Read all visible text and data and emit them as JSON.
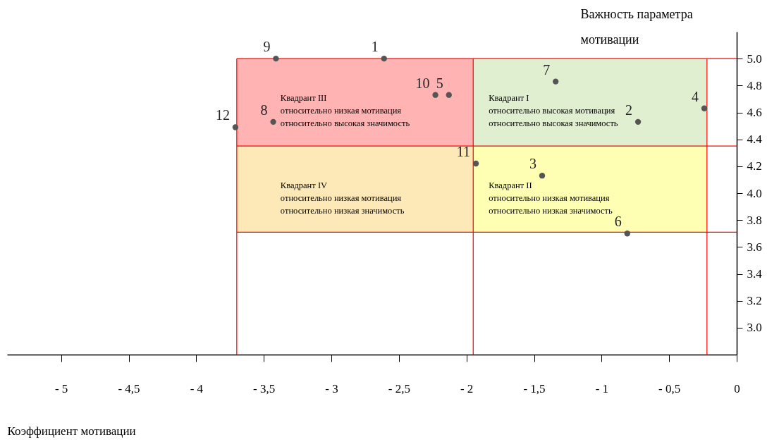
{
  "chart_data": {
    "type": "scatter",
    "xlabel": "Коэффициент мотивации",
    "ylabel": "Важность параметра мотивации",
    "x": [
      -2.61,
      -0.73,
      -1.44,
      -0.24,
      -2.13,
      -0.81,
      -1.34,
      -3.43,
      -3.41,
      -2.23,
      -1.93,
      -3.71
    ],
    "series": [
      {
        "color": "#555555",
        "values": [
          5.0,
          4.53,
          4.13,
          4.63,
          4.73,
          3.7,
          4.83,
          4.53,
          5.0,
          4.73,
          4.22,
          4.49
        ]
      }
    ],
    "annotations": [
      {
        "text": "1",
        "x": -2.61,
        "y": 5.0
      },
      {
        "text": "2",
        "x": -0.73,
        "y": 4.53
      },
      {
        "text": "3",
        "x": -1.44,
        "y": 4.13
      },
      {
        "text": "4",
        "x": -0.24,
        "y": 4.63
      },
      {
        "text": "5",
        "x": -2.13,
        "y": 4.73
      },
      {
        "text": "6",
        "x": -0.81,
        "y": 3.7
      },
      {
        "text": "7",
        "x": -1.34,
        "y": 4.83
      },
      {
        "text": "8",
        "x": -3.43,
        "y": 4.53
      },
      {
        "text": "9",
        "x": -3.41,
        "y": 5.0
      },
      {
        "text": "10",
        "x": -2.23,
        "y": 4.73
      },
      {
        "text": "11",
        "x": -1.93,
        "y": 4.22
      },
      {
        "text": "12",
        "x": -3.71,
        "y": 4.49
      }
    ],
    "bands": [
      {
        "axis": "x",
        "from": -3.7,
        "to": -1.95,
        "color": "#ffb3b3",
        "label": "Квадрант III\n   относительно низкая мотивация\n   относительно высокая  значимость"
      },
      {
        "axis": "x",
        "from": -1.95,
        "to": -0.22,
        "color": "#dfefcf",
        "label": "Квадрант I\n   относительно высокая мотивация\n   относительно высокая  значимость"
      },
      {
        "axis": "x",
        "from": -3.7,
        "to": -1.95,
        "color": "#fde9b7",
        "label": "Квадрант IV\n   относительно низкая мотивация\n   относительно низкая  значимость"
      },
      {
        "axis": "x",
        "from": -1.95,
        "to": -0.22,
        "color": "#ffffb3",
        "label": "Квадрант II\n   относительно низкая мотивация\n   относительно низкая  значимость"
      }
    ],
    "ref_lines": [
      {
        "axis": "x",
        "value": -3.7,
        "color": "#ff0000"
      },
      {
        "axis": "x",
        "value": -1.95,
        "color": "#ff0000"
      },
      {
        "axis": "x",
        "value": -0.22,
        "color": "#ff0000"
      },
      {
        "axis": "y",
        "value": 5.0,
        "color": "#ff0000"
      },
      {
        "axis": "y",
        "value": 4.35,
        "color": "#ff0000"
      },
      {
        "axis": "y",
        "value": 3.71,
        "color": "#ff0000"
      }
    ],
    "xlim": [
      -5.4,
      0
    ],
    "ylim": [
      2.8,
      5.2
    ],
    "xticks": [
      {
        "value": -5,
        "label": "- 5"
      },
      {
        "value": -4.5,
        "label": "- 4,5"
      },
      {
        "value": -4,
        "label": "- 4"
      },
      {
        "value": -3.5,
        "label": "- 3,5"
      },
      {
        "value": -3,
        "label": "- 3"
      },
      {
        "value": -2.5,
        "label": "- 2,5"
      },
      {
        "value": -2,
        "label": "- 2"
      },
      {
        "value": -1.5,
        "label": "- 1,5"
      },
      {
        "value": -1,
        "label": "- 1"
      },
      {
        "value": -0.5,
        "label": "- 0,5"
      },
      0
    ],
    "yticks": [
      {
        "value": 3,
        "label": "3.0"
      },
      3.2,
      3.4,
      3.6,
      3.8,
      {
        "value": 4,
        "label": "4.0"
      },
      4.2,
      4.4,
      4.6,
      4.8,
      {
        "value": 5,
        "label": "5.0"
      }
    ],
    "grid": false,
    "marker": "circle"
  }
}
